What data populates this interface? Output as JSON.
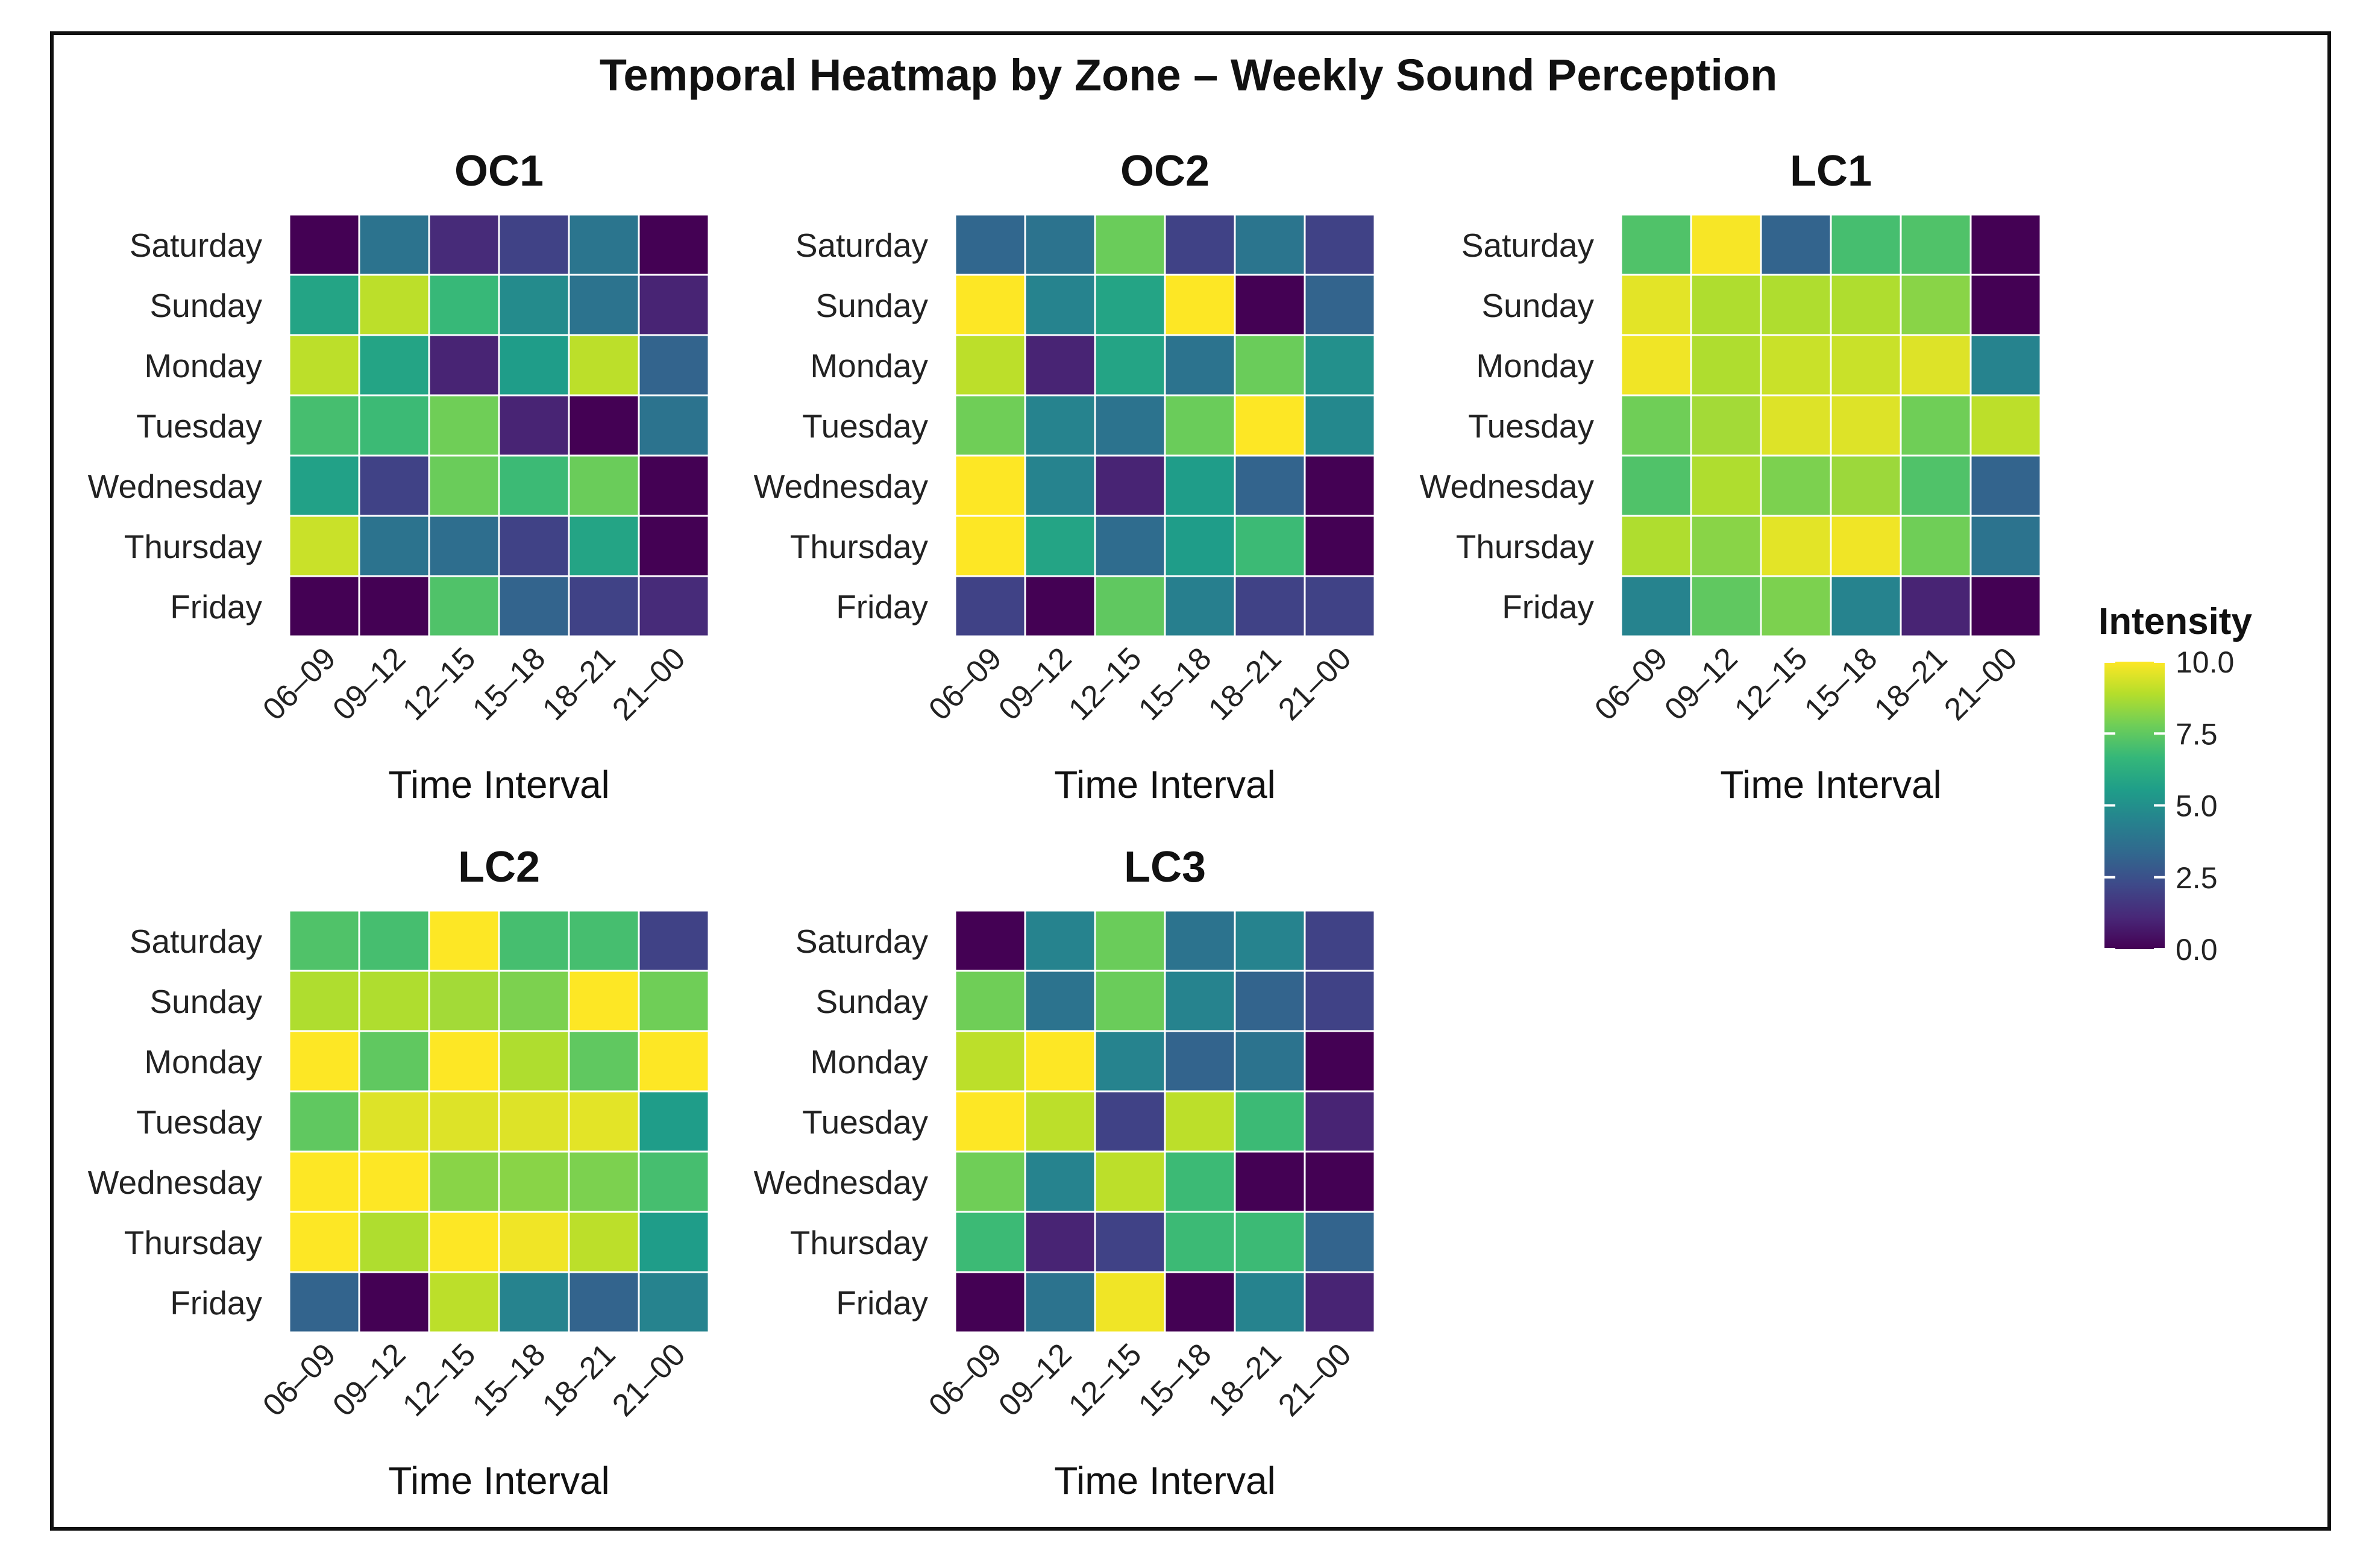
{
  "chart_data": {
    "type": "heatmap",
    "title": "Temporal Heatmap by Zone – Weekly Sound Perception",
    "xlabel": "Time Interval",
    "x_categories": [
      "06–09",
      "09–12",
      "12–15",
      "15–18",
      "18–21",
      "21–00"
    ],
    "y_categories": [
      "Saturday",
      "Sunday",
      "Monday",
      "Tuesday",
      "Wednesday",
      "Thursday",
      "Friday"
    ],
    "value_range": [
      0,
      10
    ],
    "legend": {
      "title": "Intensity",
      "ticks": [
        "10.0",
        "7.5",
        "5.0",
        "2.5",
        "0.0"
      ],
      "tick_values": [
        10,
        7.5,
        5,
        2.5,
        0
      ],
      "placement": "right",
      "colors": [
        "#440154",
        "#482878",
        "#3e4989",
        "#31688e",
        "#26828e",
        "#1f9e89",
        "#35b779",
        "#6ece58",
        "#b5de2b",
        "#fde725"
      ]
    },
    "panels": [
      {
        "name": "OC1",
        "values": [
          [
            0.0,
            3.8,
            1.2,
            2.0,
            3.9,
            0.0
          ],
          [
            5.8,
            9.0,
            6.7,
            4.8,
            3.8,
            1.0
          ],
          [
            9.0,
            5.8,
            1.0,
            5.5,
            9.0,
            3.2
          ],
          [
            7.0,
            6.8,
            7.8,
            1.0,
            0.0,
            3.8
          ],
          [
            5.7,
            2.0,
            7.7,
            6.8,
            7.7,
            0.0
          ],
          [
            9.2,
            3.8,
            3.6,
            2.0,
            5.8,
            0.0
          ],
          [
            0.0,
            0.0,
            7.2,
            3.2,
            2.0,
            1.2
          ]
        ]
      },
      {
        "name": "OC2",
        "values": [
          [
            3.3,
            3.8,
            7.7,
            2.0,
            3.9,
            2.0
          ],
          [
            10.0,
            4.5,
            5.8,
            10.0,
            0.0,
            3.2
          ],
          [
            9.0,
            1.0,
            5.8,
            3.8,
            7.7,
            5.0
          ],
          [
            7.8,
            4.5,
            3.8,
            7.7,
            10.0,
            4.7
          ],
          [
            10.0,
            4.5,
            1.0,
            5.5,
            3.2,
            0.0
          ],
          [
            10.0,
            5.8,
            3.5,
            5.5,
            6.8,
            0.0
          ],
          [
            2.0,
            0.0,
            7.5,
            4.3,
            2.0,
            2.0
          ]
        ]
      },
      {
        "name": "LC1",
        "values": [
          [
            7.2,
            9.9,
            3.2,
            7.0,
            7.2,
            0.0
          ],
          [
            9.6,
            8.8,
            8.8,
            8.8,
            8.2,
            0.0
          ],
          [
            9.8,
            8.8,
            9.2,
            9.2,
            9.5,
            4.5
          ],
          [
            7.8,
            8.6,
            9.5,
            9.5,
            7.8,
            9.0
          ],
          [
            7.2,
            8.8,
            8.0,
            8.5,
            7.2,
            3.2
          ],
          [
            8.8,
            8.2,
            9.6,
            9.8,
            7.8,
            3.8
          ],
          [
            4.5,
            7.5,
            8.0,
            4.5,
            1.0,
            0.0
          ]
        ]
      },
      {
        "name": "LC2",
        "values": [
          [
            7.2,
            7.0,
            10.0,
            7.0,
            7.0,
            2.0
          ],
          [
            8.8,
            8.8,
            8.6,
            8.0,
            10.0,
            7.8
          ],
          [
            10.0,
            7.5,
            10.0,
            8.8,
            7.5,
            10.0
          ],
          [
            7.5,
            9.5,
            9.5,
            9.5,
            9.6,
            5.5
          ],
          [
            10.0,
            10.0,
            8.2,
            8.2,
            8.0,
            7.0
          ],
          [
            10.0,
            8.8,
            10.0,
            9.8,
            9.0,
            5.5
          ],
          [
            3.2,
            0.0,
            9.0,
            4.5,
            3.2,
            4.5
          ]
        ]
      },
      {
        "name": "LC3",
        "values": [
          [
            0.0,
            4.5,
            7.7,
            3.8,
            4.5,
            2.0
          ],
          [
            7.8,
            3.8,
            7.7,
            4.5,
            3.2,
            2.0
          ],
          [
            9.0,
            10.0,
            4.5,
            3.2,
            3.8,
            0.0
          ],
          [
            10.0,
            9.0,
            2.0,
            9.0,
            6.8,
            1.0
          ],
          [
            7.8,
            4.5,
            9.0,
            6.8,
            0.0,
            0.0
          ],
          [
            6.8,
            1.0,
            2.0,
            6.8,
            6.8,
            3.2
          ],
          [
            0.0,
            3.8,
            9.8,
            0.0,
            4.5,
            1.0
          ]
        ]
      }
    ]
  }
}
